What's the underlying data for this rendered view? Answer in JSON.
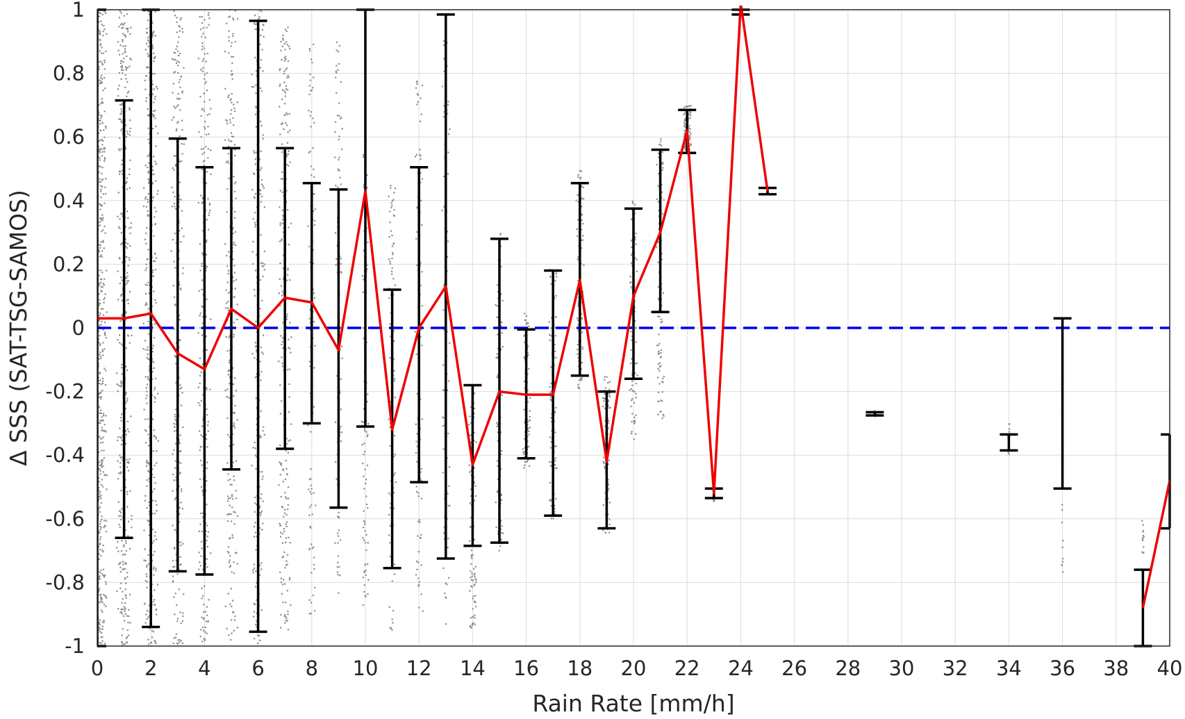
{
  "chart_data": {
    "type": "line",
    "title": "",
    "xlabel": "Rain Rate [mm/h]",
    "ylabel": "Δ SSS (SAT-TSG-SAMOS)",
    "xlim": [
      0,
      40
    ],
    "ylim": [
      -1,
      1
    ],
    "xticks": [
      0,
      2,
      4,
      6,
      8,
      10,
      12,
      14,
      16,
      18,
      20,
      22,
      24,
      26,
      28,
      30,
      32,
      34,
      36,
      38,
      40
    ],
    "yticks": [
      -1,
      -0.8,
      -0.6,
      -0.4,
      -0.2,
      0,
      0.2,
      0.4,
      0.6,
      0.8,
      1
    ],
    "ytick_labels": [
      "-1",
      "-0.8",
      "-0.6",
      "-0.4",
      "-0.2",
      "0",
      "0.2",
      "0.4",
      "0.6",
      "0.8",
      "1"
    ],
    "grid": true,
    "reference_line": {
      "y": 0,
      "style": "dashed",
      "color": "#0000ee"
    },
    "mean_line": {
      "color": "#ee0000",
      "segments": [
        {
          "x": [
            0,
            1,
            2,
            3,
            4,
            5,
            6,
            7,
            8,
            9,
            10,
            11,
            12,
            13,
            14,
            15,
            16,
            17,
            18,
            19,
            20,
            21,
            22,
            23,
            24,
            25
          ],
          "y": [
            0.03,
            0.03,
            0.045,
            -0.08,
            -0.13,
            0.06,
            0.0,
            0.095,
            0.08,
            -0.07,
            0.43,
            -0.32,
            0.0,
            0.13,
            -0.43,
            -0.2,
            -0.21,
            -0.21,
            0.15,
            -0.42,
            0.1,
            0.3,
            0.62,
            -0.52,
            1.02,
            0.43
          ]
        },
        {
          "x": [
            39,
            40
          ],
          "y": [
            -0.88,
            -0.48
          ]
        }
      ]
    },
    "error_bars": {
      "color": "#000000",
      "items": [
        {
          "x": 0,
          "low": -1.0,
          "high": 1.0
        },
        {
          "x": 1,
          "low": -0.66,
          "high": 0.715
        },
        {
          "x": 2,
          "low": -0.94,
          "high": 1.0
        },
        {
          "x": 3,
          "low": -0.765,
          "high": 0.595
        },
        {
          "x": 4,
          "low": -0.775,
          "high": 0.505
        },
        {
          "x": 5,
          "low": -0.445,
          "high": 0.565
        },
        {
          "x": 6,
          "low": -0.955,
          "high": 0.965
        },
        {
          "x": 7,
          "low": -0.38,
          "high": 0.565
        },
        {
          "x": 8,
          "low": -0.3,
          "high": 0.455
        },
        {
          "x": 9,
          "low": -0.565,
          "high": 0.435
        },
        {
          "x": 10,
          "low": -0.31,
          "high": 1.0
        },
        {
          "x": 11,
          "low": -0.755,
          "high": 0.12
        },
        {
          "x": 12,
          "low": -0.485,
          "high": 0.505
        },
        {
          "x": 13,
          "low": -0.725,
          "high": 0.985
        },
        {
          "x": 14,
          "low": -0.685,
          "high": -0.18
        },
        {
          "x": 15,
          "low": -0.675,
          "high": 0.28
        },
        {
          "x": 16,
          "low": -0.41,
          "high": -0.005
        },
        {
          "x": 17,
          "low": -0.59,
          "high": 0.18
        },
        {
          "x": 18,
          "low": -0.15,
          "high": 0.455
        },
        {
          "x": 19,
          "low": -0.63,
          "high": -0.2
        },
        {
          "x": 20,
          "low": -0.16,
          "high": 0.375
        },
        {
          "x": 21,
          "low": 0.05,
          "high": 0.56
        },
        {
          "x": 22,
          "low": 0.55,
          "high": 0.685
        },
        {
          "x": 23,
          "low": -0.535,
          "high": -0.505
        },
        {
          "x": 24,
          "low": 0.985,
          "high": 1.0
        },
        {
          "x": 25,
          "low": 0.42,
          "high": 0.44
        },
        {
          "x": 29,
          "low": -0.275,
          "high": -0.265
        },
        {
          "x": 34,
          "low": -0.385,
          "high": -0.335
        },
        {
          "x": 36,
          "low": -0.505,
          "high": 0.03
        },
        {
          "x": 39,
          "low": -1.0,
          "high": -0.76
        },
        {
          "x": 40,
          "low": -0.63,
          "high": -0.335
        }
      ]
    },
    "scatter": {
      "color": "#8c8c8c",
      "description_columns": [
        {
          "x": 0,
          "low": -1.0,
          "high": 1.0,
          "density": "very high"
        },
        {
          "x": 1,
          "low": -1.0,
          "high": 1.0,
          "density": "high"
        },
        {
          "x": 2,
          "low": -1.0,
          "high": 1.0,
          "density": "high"
        },
        {
          "x": 3,
          "low": -1.0,
          "high": 1.0,
          "density": "medium"
        },
        {
          "x": 4,
          "low": -1.0,
          "high": 1.0,
          "density": "medium"
        },
        {
          "x": 5,
          "low": -1.0,
          "high": 1.0,
          "density": "medium"
        },
        {
          "x": 6,
          "low": -1.0,
          "high": 1.0,
          "density": "medium"
        },
        {
          "x": 7,
          "low": -0.95,
          "high": 0.95,
          "density": "medium"
        },
        {
          "x": 8,
          "low": -0.9,
          "high": 0.9,
          "density": "low"
        },
        {
          "x": 9,
          "low": -0.85,
          "high": 0.9,
          "density": "low"
        },
        {
          "x": 10,
          "low": -0.9,
          "high": 0.6,
          "density": "low"
        },
        {
          "x": 11,
          "low": -0.95,
          "high": 0.45,
          "density": "low"
        },
        {
          "x": 12,
          "low": -0.9,
          "high": 0.85,
          "density": "low"
        },
        {
          "x": 13,
          "low": -0.95,
          "high": 0.95,
          "density": "low"
        },
        {
          "x": 14,
          "low": -0.95,
          "high": -0.15,
          "density": "low"
        },
        {
          "x": 15,
          "low": -0.7,
          "high": 0.3,
          "density": "low"
        },
        {
          "x": 16,
          "low": -0.45,
          "high": 0.05,
          "density": "low"
        },
        {
          "x": 17,
          "low": -0.6,
          "high": 0.2,
          "density": "low"
        },
        {
          "x": 18,
          "low": -0.2,
          "high": 0.5,
          "density": "low"
        },
        {
          "x": 19,
          "low": -0.65,
          "high": -0.15,
          "density": "low"
        },
        {
          "x": 20,
          "low": -0.35,
          "high": 0.4,
          "density": "low"
        },
        {
          "x": 21,
          "low": -0.3,
          "high": 0.6,
          "density": "low"
        },
        {
          "x": 22,
          "low": 0.55,
          "high": 0.7,
          "density": "low"
        },
        {
          "x": 23,
          "low": -0.55,
          "high": -0.5,
          "density": "sparse"
        },
        {
          "x": 25,
          "low": 0.42,
          "high": 0.44,
          "density": "sparse"
        },
        {
          "x": 29,
          "low": -0.28,
          "high": -0.26,
          "density": "sparse"
        },
        {
          "x": 34,
          "low": -0.4,
          "high": -0.3,
          "density": "sparse"
        },
        {
          "x": 36,
          "low": -0.8,
          "high": -0.15,
          "density": "sparse"
        },
        {
          "x": 39,
          "low": -0.9,
          "high": -0.6,
          "density": "sparse"
        }
      ]
    }
  }
}
